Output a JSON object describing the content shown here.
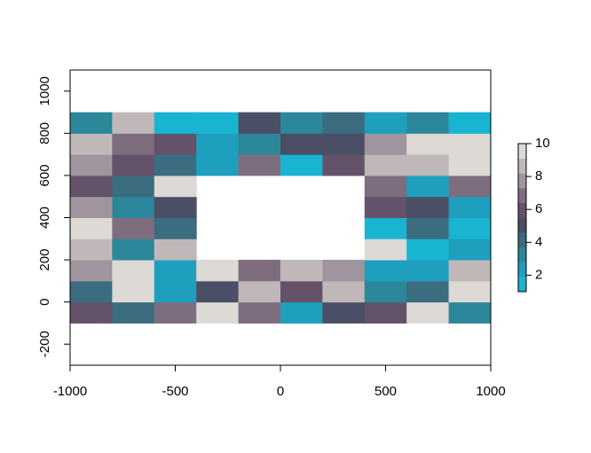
{
  "chart_data": {
    "type": "heatmap",
    "xbins": [
      -1000,
      -800,
      -600,
      -400,
      -200,
      0,
      200,
      400,
      600,
      800,
      1000
    ],
    "ybins": [
      -100,
      0,
      100,
      200,
      300,
      400,
      500,
      600,
      700,
      800,
      900
    ],
    "z": [
      [
        6,
        4,
        7,
        10,
        7,
        2,
        5,
        6,
        10,
        3
      ],
      [
        4,
        10,
        2,
        5,
        9,
        6,
        9,
        3,
        4,
        10
      ],
      [
        8,
        10,
        2,
        10,
        7,
        9,
        8,
        2,
        2,
        9
      ],
      [
        9,
        3,
        9,
        null,
        null,
        null,
        null,
        10,
        1,
        2
      ],
      [
        10,
        7,
        4,
        null,
        null,
        null,
        null,
        1,
        4,
        1
      ],
      [
        8,
        3,
        5,
        null,
        null,
        null,
        null,
        6,
        5,
        2
      ],
      [
        6,
        4,
        10,
        null,
        null,
        null,
        null,
        7,
        2,
        7
      ],
      [
        8,
        6,
        4,
        2,
        7,
        1,
        6,
        9,
        9,
        10
      ],
      [
        9,
        7,
        6,
        2,
        3,
        5,
        5,
        8,
        10,
        10
      ],
      [
        3,
        9,
        1,
        1,
        5,
        3,
        4,
        2,
        3,
        1
      ]
    ],
    "colors": [
      "#19b4d2",
      "#1f9fbe",
      "#2b8799",
      "#3b6c80",
      "#4b4f66",
      "#635269",
      "#7e6d7f",
      "#a0949e",
      "#c0b7b8",
      "#ddd9d4"
    ],
    "xlim": [
      -1000,
      1000
    ],
    "xticks": [
      -1000,
      -500,
      0,
      500,
      1000
    ],
    "ylim": [
      -300,
      1100
    ],
    "yticks": [
      -200,
      0,
      200,
      400,
      600,
      800,
      1000
    ],
    "zlim": [
      1,
      10
    ],
    "zticks": [
      2,
      4,
      6,
      8,
      10
    ]
  }
}
